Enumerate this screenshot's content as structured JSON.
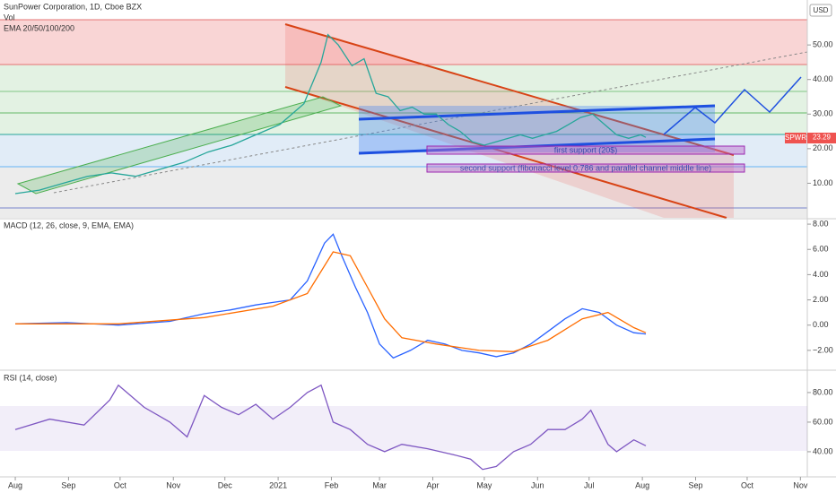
{
  "chart_data": [
    {
      "type": "line",
      "title": "SunPower Corporation, 1D, Cboe BZX",
      "indicators": [
        "Vol",
        "EMA 20/50/100/200"
      ],
      "currency": "USD",
      "annotations": [
        "first support  (20$)",
        "second support (fibonacci level 0.786 and parallel channel middle line)"
      ],
      "xlim": [
        -8.9,
        461
      ],
      "xticks": [
        {
          "value": 0,
          "label": "Aug"
        },
        {
          "value": 31,
          "label": "Sep"
        },
        {
          "value": 61,
          "label": "Oct"
        },
        {
          "value": 92,
          "label": "Nov"
        },
        {
          "value": 122,
          "label": "Dec"
        },
        {
          "value": 153,
          "label": "2021"
        },
        {
          "value": 184,
          "label": "Feb"
        },
        {
          "value": 212,
          "label": "Mar"
        },
        {
          "value": 243,
          "label": "Apr"
        },
        {
          "value": 273,
          "label": "May"
        },
        {
          "value": 304,
          "label": "Jun"
        },
        {
          "value": 334,
          "label": "Jul"
        },
        {
          "value": 365,
          "label": "Aug"
        },
        {
          "value": 396,
          "label": "Sep"
        },
        {
          "value": 426,
          "label": "Oct"
        },
        {
          "value": 457,
          "label": "Nov"
        }
      ],
      "ylim": [
        0,
        63
      ],
      "yticks": [
        {
          "value": 10,
          "label": "10.00"
        },
        {
          "value": 20,
          "label": "20.00"
        },
        {
          "value": 30,
          "label": "30.00"
        },
        {
          "value": 40,
          "label": "40.00"
        },
        {
          "value": 50,
          "label": "50.00"
        }
      ],
      "series": [
        {
          "name": "SPWR",
          "color": "#26a69a",
          "x": [
            0,
            14,
            28,
            42,
            56,
            70,
            84,
            98,
            112,
            126,
            140,
            154,
            168,
            178,
            182,
            188,
            196,
            203,
            210,
            217,
            224,
            231,
            238,
            245,
            252,
            259,
            266,
            273,
            280,
            287,
            294,
            301,
            308,
            315,
            322,
            329,
            336,
            343,
            350,
            357,
            364,
            367
          ],
          "values": [
            7,
            8,
            10,
            12,
            13,
            12,
            14,
            16,
            19,
            21,
            24,
            27,
            33,
            45,
            53,
            50,
            44,
            46,
            36,
            35,
            31,
            32,
            30,
            30,
            27,
            25,
            22,
            21,
            22,
            23,
            24,
            23,
            24,
            25,
            27,
            29,
            30,
            27,
            24,
            23,
            24,
            23.29
          ]
        }
      ]
    },
    {
      "type": "line",
      "title": "MACD (12, 26, close, 9, EMA, EMA)",
      "ylim": [
        -3.5,
        8.36
      ],
      "yticks": [
        {
          "value": 8,
          "label": "8.00"
        },
        {
          "value": 6,
          "label": "6.00"
        },
        {
          "value": 4,
          "label": "4.00"
        },
        {
          "value": 2,
          "label": "2.00"
        },
        {
          "value": 0,
          "label": "0.00"
        },
        {
          "value": -2,
          "label": "−2.00"
        }
      ],
      "series": [
        {
          "color": "#2962ff",
          "x": [
            0,
            30,
            60,
            90,
            110,
            125,
            140,
            150,
            160,
            170,
            180,
            185,
            190,
            198,
            205,
            212,
            220,
            230,
            240,
            250,
            260,
            270,
            280,
            290,
            300,
            310,
            320,
            330,
            340,
            350,
            360,
            367
          ],
          "values": [
            0.1,
            0.2,
            0.0,
            0.3,
            0.9,
            1.2,
            1.6,
            1.8,
            2.0,
            3.5,
            6.5,
            7.2,
            5.5,
            3.0,
            1.0,
            -1.5,
            -2.6,
            -2.0,
            -1.2,
            -1.5,
            -2.0,
            -2.2,
            -2.5,
            -2.2,
            -1.5,
            -0.5,
            0.5,
            1.3,
            1.0,
            0.0,
            -0.6,
            -0.7
          ]
        },
        {
          "color": "#ff6d00",
          "x": [
            0,
            60,
            110,
            150,
            170,
            185,
            195,
            205,
            215,
            225,
            245,
            270,
            290,
            310,
            330,
            345,
            360,
            367
          ],
          "values": [
            0.1,
            0.1,
            0.6,
            1.5,
            2.5,
            5.8,
            5.5,
            3.0,
            0.5,
            -1.0,
            -1.5,
            -2.0,
            -2.1,
            -1.2,
            0.5,
            1.0,
            -0.2,
            -0.6
          ]
        }
      ]
    },
    {
      "type": "line",
      "title": "RSI (14, close)",
      "ylim": [
        23,
        94.5
      ],
      "yticks": [
        {
          "value": 80,
          "label": "80.00"
        },
        {
          "value": 60,
          "label": "60.00"
        },
        {
          "value": 40,
          "label": "40.00"
        }
      ],
      "series": [
        {
          "color": "#7e57c2",
          "x": [
            0,
            20,
            40,
            55,
            60,
            65,
            75,
            90,
            100,
            110,
            120,
            130,
            140,
            150,
            160,
            170,
            178,
            185,
            195,
            205,
            215,
            225,
            240,
            255,
            265,
            272,
            280,
            290,
            300,
            310,
            320,
            330,
            335,
            345,
            350,
            360,
            367
          ],
          "values": [
            55,
            62,
            58,
            75,
            85,
            80,
            70,
            60,
            50,
            78,
            70,
            65,
            72,
            62,
            70,
            80,
            85,
            60,
            55,
            45,
            40,
            45,
            42,
            38,
            35,
            28,
            30,
            40,
            45,
            55,
            55,
            62,
            68,
            45,
            40,
            48,
            44
          ]
        }
      ]
    }
  ]
}
